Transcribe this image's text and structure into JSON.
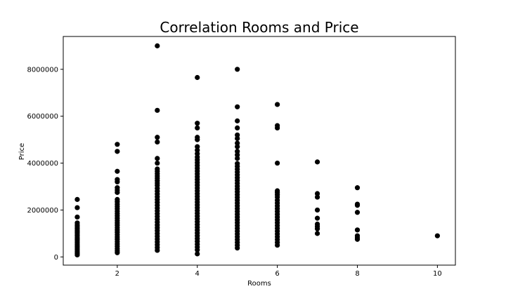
{
  "chart_data": {
    "type": "scatter",
    "title": "Correlation Rooms and Price",
    "xlabel": "Rooms",
    "ylabel": "Price",
    "xlim": [
      0.65,
      10.45
    ],
    "ylim": [
      -350000,
      9400000
    ],
    "xticks": [
      2,
      4,
      6,
      8,
      10
    ],
    "yticks": [
      0,
      2000000,
      4000000,
      6000000,
      8000000
    ],
    "xtick_labels": [
      "2",
      "4",
      "6",
      "8",
      "10"
    ],
    "ytick_labels": [
      "0",
      "2000000",
      "4000000",
      "6000000",
      "8000000"
    ],
    "grid": false,
    "marker_color": "#000000",
    "series": [
      {
        "name": "",
        "points": [
          [
            1,
            85000
          ],
          [
            1,
            150000
          ],
          [
            1,
            220000
          ],
          [
            1,
            300000
          ],
          [
            1,
            380000
          ],
          [
            1,
            450000
          ],
          [
            1,
            520000
          ],
          [
            1,
            600000
          ],
          [
            1,
            680000
          ],
          [
            1,
            750000
          ],
          [
            1,
            820000
          ],
          [
            1,
            900000
          ],
          [
            1,
            980000
          ],
          [
            1,
            1050000
          ],
          [
            1,
            1120000
          ],
          [
            1,
            1200000
          ],
          [
            1,
            1280000
          ],
          [
            1,
            1350000
          ],
          [
            1,
            1450000
          ],
          [
            1,
            1700000
          ],
          [
            1,
            2100000
          ],
          [
            1,
            2450000
          ],
          [
            2,
            180000
          ],
          [
            2,
            260000
          ],
          [
            2,
            350000
          ],
          [
            2,
            450000
          ],
          [
            2,
            550000
          ],
          [
            2,
            650000
          ],
          [
            2,
            750000
          ],
          [
            2,
            850000
          ],
          [
            2,
            950000
          ],
          [
            2,
            1050000
          ],
          [
            2,
            1150000
          ],
          [
            2,
            1250000
          ],
          [
            2,
            1350000
          ],
          [
            2,
            1450000
          ],
          [
            2,
            1550000
          ],
          [
            2,
            1650000
          ],
          [
            2,
            1750000
          ],
          [
            2,
            1850000
          ],
          [
            2,
            1950000
          ],
          [
            2,
            2050000
          ],
          [
            2,
            2150000
          ],
          [
            2,
            2250000
          ],
          [
            2,
            2350000
          ],
          [
            2,
            2450000
          ],
          [
            2,
            2750000
          ],
          [
            2,
            2850000
          ],
          [
            2,
            2950000
          ],
          [
            2,
            3200000
          ],
          [
            2,
            3300000
          ],
          [
            2,
            3650000
          ],
          [
            2,
            4500000
          ],
          [
            2,
            4800000
          ],
          [
            3,
            280000
          ],
          [
            3,
            400000
          ],
          [
            3,
            520000
          ],
          [
            3,
            640000
          ],
          [
            3,
            760000
          ],
          [
            3,
            880000
          ],
          [
            3,
            1000000
          ],
          [
            3,
            1120000
          ],
          [
            3,
            1240000
          ],
          [
            3,
            1360000
          ],
          [
            3,
            1480000
          ],
          [
            3,
            1600000
          ],
          [
            3,
            1720000
          ],
          [
            3,
            1840000
          ],
          [
            3,
            1960000
          ],
          [
            3,
            2080000
          ],
          [
            3,
            2200000
          ],
          [
            3,
            2320000
          ],
          [
            3,
            2440000
          ],
          [
            3,
            2560000
          ],
          [
            3,
            2680000
          ],
          [
            3,
            2800000
          ],
          [
            3,
            2920000
          ],
          [
            3,
            3050000
          ],
          [
            3,
            3150000
          ],
          [
            3,
            3250000
          ],
          [
            3,
            3350000
          ],
          [
            3,
            3450000
          ],
          [
            3,
            3550000
          ],
          [
            3,
            3650000
          ],
          [
            3,
            3750000
          ],
          [
            3,
            4000000
          ],
          [
            3,
            4200000
          ],
          [
            3,
            4900000
          ],
          [
            3,
            5100000
          ],
          [
            3,
            6250000
          ],
          [
            3,
            9000000
          ],
          [
            4,
            130000
          ],
          [
            4,
            300000
          ],
          [
            4,
            420000
          ],
          [
            4,
            540000
          ],
          [
            4,
            660000
          ],
          [
            4,
            780000
          ],
          [
            4,
            900000
          ],
          [
            4,
            1020000
          ],
          [
            4,
            1140000
          ],
          [
            4,
            1260000
          ],
          [
            4,
            1380000
          ],
          [
            4,
            1500000
          ],
          [
            4,
            1620000
          ],
          [
            4,
            1740000
          ],
          [
            4,
            1860000
          ],
          [
            4,
            1980000
          ],
          [
            4,
            2100000
          ],
          [
            4,
            2220000
          ],
          [
            4,
            2340000
          ],
          [
            4,
            2460000
          ],
          [
            4,
            2580000
          ],
          [
            4,
            2700000
          ],
          [
            4,
            2820000
          ],
          [
            4,
            2940000
          ],
          [
            4,
            3060000
          ],
          [
            4,
            3180000
          ],
          [
            4,
            3300000
          ],
          [
            4,
            3420000
          ],
          [
            4,
            3540000
          ],
          [
            4,
            3660000
          ],
          [
            4,
            3780000
          ],
          [
            4,
            3900000
          ],
          [
            4,
            4020000
          ],
          [
            4,
            4140000
          ],
          [
            4,
            4260000
          ],
          [
            4,
            4400000
          ],
          [
            4,
            4550000
          ],
          [
            4,
            4700000
          ],
          [
            4,
            5000000
          ],
          [
            4,
            5100000
          ],
          [
            4,
            5500000
          ],
          [
            4,
            5700000
          ],
          [
            4,
            7650000
          ],
          [
            5,
            380000
          ],
          [
            5,
            500000
          ],
          [
            5,
            620000
          ],
          [
            5,
            740000
          ],
          [
            5,
            860000
          ],
          [
            5,
            980000
          ],
          [
            5,
            1100000
          ],
          [
            5,
            1220000
          ],
          [
            5,
            1340000
          ],
          [
            5,
            1460000
          ],
          [
            5,
            1580000
          ],
          [
            5,
            1700000
          ],
          [
            5,
            1820000
          ],
          [
            5,
            1940000
          ],
          [
            5,
            2060000
          ],
          [
            5,
            2180000
          ],
          [
            5,
            2300000
          ],
          [
            5,
            2420000
          ],
          [
            5,
            2540000
          ],
          [
            5,
            2660000
          ],
          [
            5,
            2780000
          ],
          [
            5,
            2900000
          ],
          [
            5,
            3020000
          ],
          [
            5,
            3140000
          ],
          [
            5,
            3260000
          ],
          [
            5,
            3380000
          ],
          [
            5,
            3500000
          ],
          [
            5,
            3620000
          ],
          [
            5,
            3740000
          ],
          [
            5,
            3860000
          ],
          [
            5,
            3980000
          ],
          [
            5,
            4200000
          ],
          [
            5,
            4350000
          ],
          [
            5,
            4500000
          ],
          [
            5,
            4700000
          ],
          [
            5,
            4850000
          ],
          [
            5,
            5050000
          ],
          [
            5,
            5200000
          ],
          [
            5,
            5500000
          ],
          [
            5,
            5800000
          ],
          [
            5,
            6400000
          ],
          [
            5,
            8000000
          ],
          [
            6,
            500000
          ],
          [
            6,
            620000
          ],
          [
            6,
            740000
          ],
          [
            6,
            860000
          ],
          [
            6,
            980000
          ],
          [
            6,
            1100000
          ],
          [
            6,
            1220000
          ],
          [
            6,
            1340000
          ],
          [
            6,
            1460000
          ],
          [
            6,
            1580000
          ],
          [
            6,
            1700000
          ],
          [
            6,
            1820000
          ],
          [
            6,
            1940000
          ],
          [
            6,
            2060000
          ],
          [
            6,
            2180000
          ],
          [
            6,
            2300000
          ],
          [
            6,
            2420000
          ],
          [
            6,
            2550000
          ],
          [
            6,
            2650000
          ],
          [
            6,
            2750000
          ],
          [
            6,
            2820000
          ],
          [
            6,
            4000000
          ],
          [
            6,
            5500000
          ],
          [
            6,
            5600000
          ],
          [
            6,
            6500000
          ],
          [
            7,
            1000000
          ],
          [
            7,
            1200000
          ],
          [
            7,
            1300000
          ],
          [
            7,
            1400000
          ],
          [
            7,
            1650000
          ],
          [
            7,
            2000000
          ],
          [
            7,
            2550000
          ],
          [
            7,
            2700000
          ],
          [
            7,
            4050000
          ],
          [
            8,
            750000
          ],
          [
            8,
            820000
          ],
          [
            8,
            900000
          ],
          [
            8,
            1150000
          ],
          [
            8,
            1900000
          ],
          [
            8,
            2200000
          ],
          [
            8,
            2250000
          ],
          [
            8,
            2950000
          ],
          [
            10,
            900000
          ]
        ]
      }
    ]
  }
}
